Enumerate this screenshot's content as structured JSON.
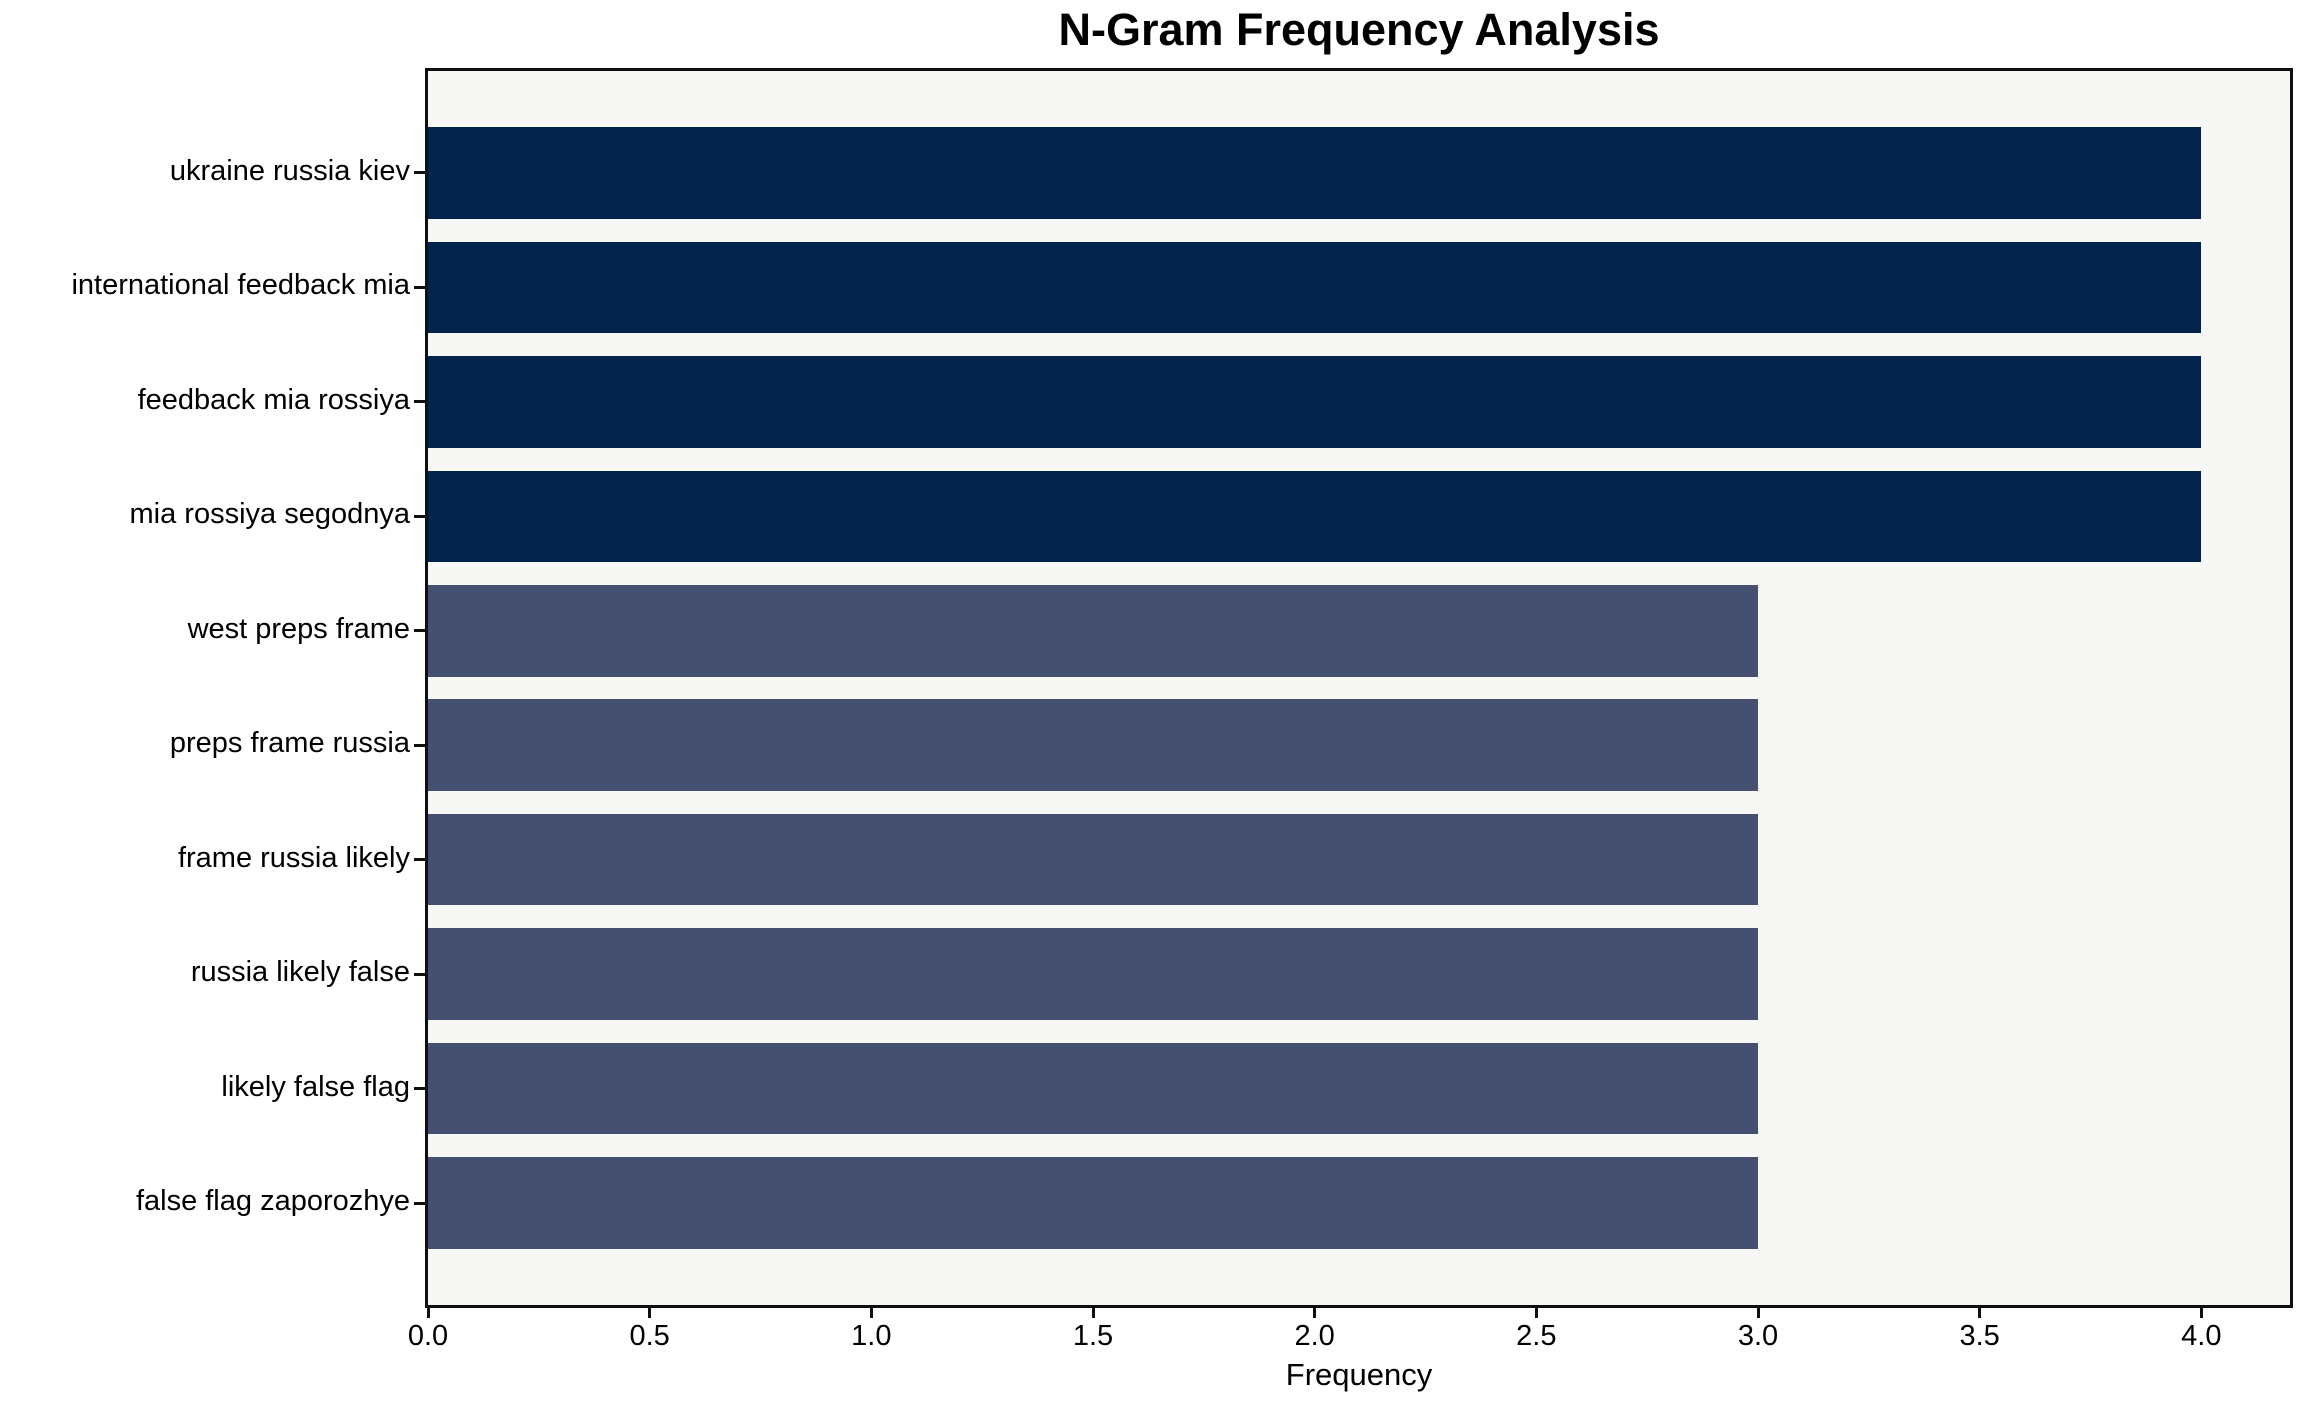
{
  "figure": {
    "title": "N-Gram Frequency Analysis",
    "xlabel": "Frequency"
  },
  "chart_data": {
    "type": "bar",
    "orientation": "horizontal",
    "title": "N-Gram Frequency Analysis",
    "xlabel": "Frequency",
    "ylabel": "",
    "categories": [
      "ukraine russia kiev",
      "international feedback mia",
      "feedback mia rossiya",
      "mia rossiya segodnya",
      "west preps frame",
      "preps frame russia",
      "frame russia likely",
      "russia likely false",
      "likely false flag",
      "false flag zaporozhye"
    ],
    "values": [
      4,
      4,
      4,
      4,
      3,
      3,
      3,
      3,
      3,
      3
    ],
    "xlim": [
      0,
      4.2
    ],
    "xticks": [
      0.0,
      0.5,
      1.0,
      1.5,
      2.0,
      2.5,
      3.0,
      3.5,
      4.0
    ],
    "xtick_labels": [
      "0.0",
      "0.5",
      "1.0",
      "1.5",
      "2.0",
      "2.5",
      "3.0",
      "3.5",
      "4.0"
    ],
    "grid": false,
    "legend": null,
    "bar_height_fraction": 0.8,
    "colors": {
      "bar_value_4": "#02234c",
      "bar_value_3": "#455070",
      "plot_background": "#f7f7f6",
      "figure_background": "#ffffff",
      "spine": "#0f0f0f",
      "text": "#000000"
    },
    "bar_colors": [
      "#02234c",
      "#02234c",
      "#02234c",
      "#02234c",
      "#455070",
      "#455070",
      "#455070",
      "#455070",
      "#455070",
      "#455070"
    ]
  }
}
